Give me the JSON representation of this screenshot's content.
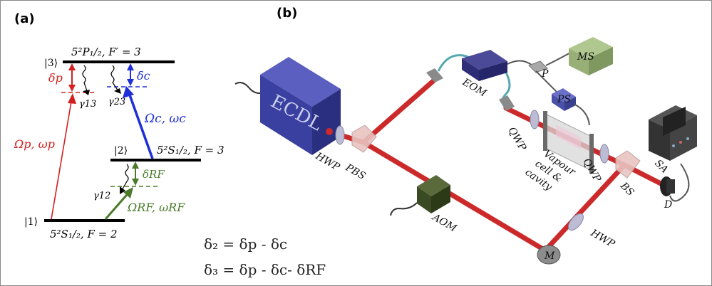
{
  "panel_a": {
    "label": "(a)",
    "level3": {
      "ket": "|3⟩",
      "label": "5²P₁/₂, F′ = 3"
    },
    "level2": {
      "ket": "|2⟩",
      "label": "5²S₁/₂, F = 3"
    },
    "level1": {
      "ket": "|1⟩",
      "label": "5²S₁/₂, F = 2"
    },
    "delta_p": "δp",
    "delta_c": "δc",
    "delta_rf": "δRF",
    "gamma13": "γ13",
    "gamma23": "γ23",
    "gamma12": "γ12",
    "omega_p": "Ωp, ωp",
    "omega_c": "Ωc, ωc",
    "omega_rf": "ΩRF, ωRF",
    "eq1": "δ₂ = δp - δc",
    "eq2": "δ₃ = δp - δc- δRF",
    "colors": {
      "probe": "#d42020",
      "coupling": "#1f2fd8",
      "rf": "#4a7a2a"
    }
  },
  "panel_b": {
    "label": "(b)",
    "ecdl": "ECDL",
    "hwp1": "HWP",
    "pbs": "PBS",
    "aom": "AOM",
    "eom": "EOM",
    "p": "P",
    "ms": "MS",
    "ps": "PS",
    "qwp1": "QWP",
    "qwp2": "QWP",
    "cell_line1": "Vapour",
    "cell_line2": "cell &",
    "cell_line3": "cavity",
    "sa": "SA",
    "bs": "BS",
    "d": "D",
    "hwp2": "HWP",
    "m": "M",
    "colors": {
      "beam": "#cc2a2a",
      "ecdl_body": "#3a40a0"
    }
  }
}
